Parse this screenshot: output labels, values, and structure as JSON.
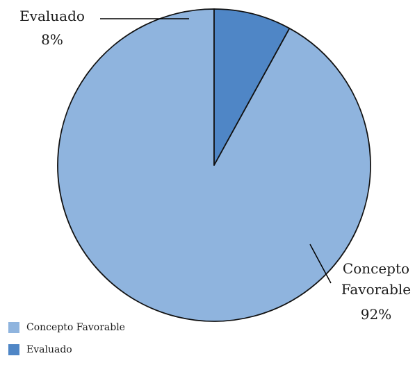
{
  "chart_data": {
    "type": "pie",
    "title": "",
    "start_angle_deg": 0,
    "direction": "counterclockwise",
    "slices": [
      {
        "label": "Concepto Favorable",
        "label_lines": [
          "Concepto",
          "Favorable"
        ],
        "value": 92,
        "value_text": "92%",
        "color": "#8fb4de"
      },
      {
        "label": "Evaluado",
        "label_lines": [
          "Evaluado"
        ],
        "value": 8,
        "value_text": "8%",
        "color": "#4f86c6"
      }
    ],
    "legend": {
      "position": "bottom-left",
      "entries": [
        "Concepto Favorable",
        "Evaluado"
      ]
    }
  }
}
